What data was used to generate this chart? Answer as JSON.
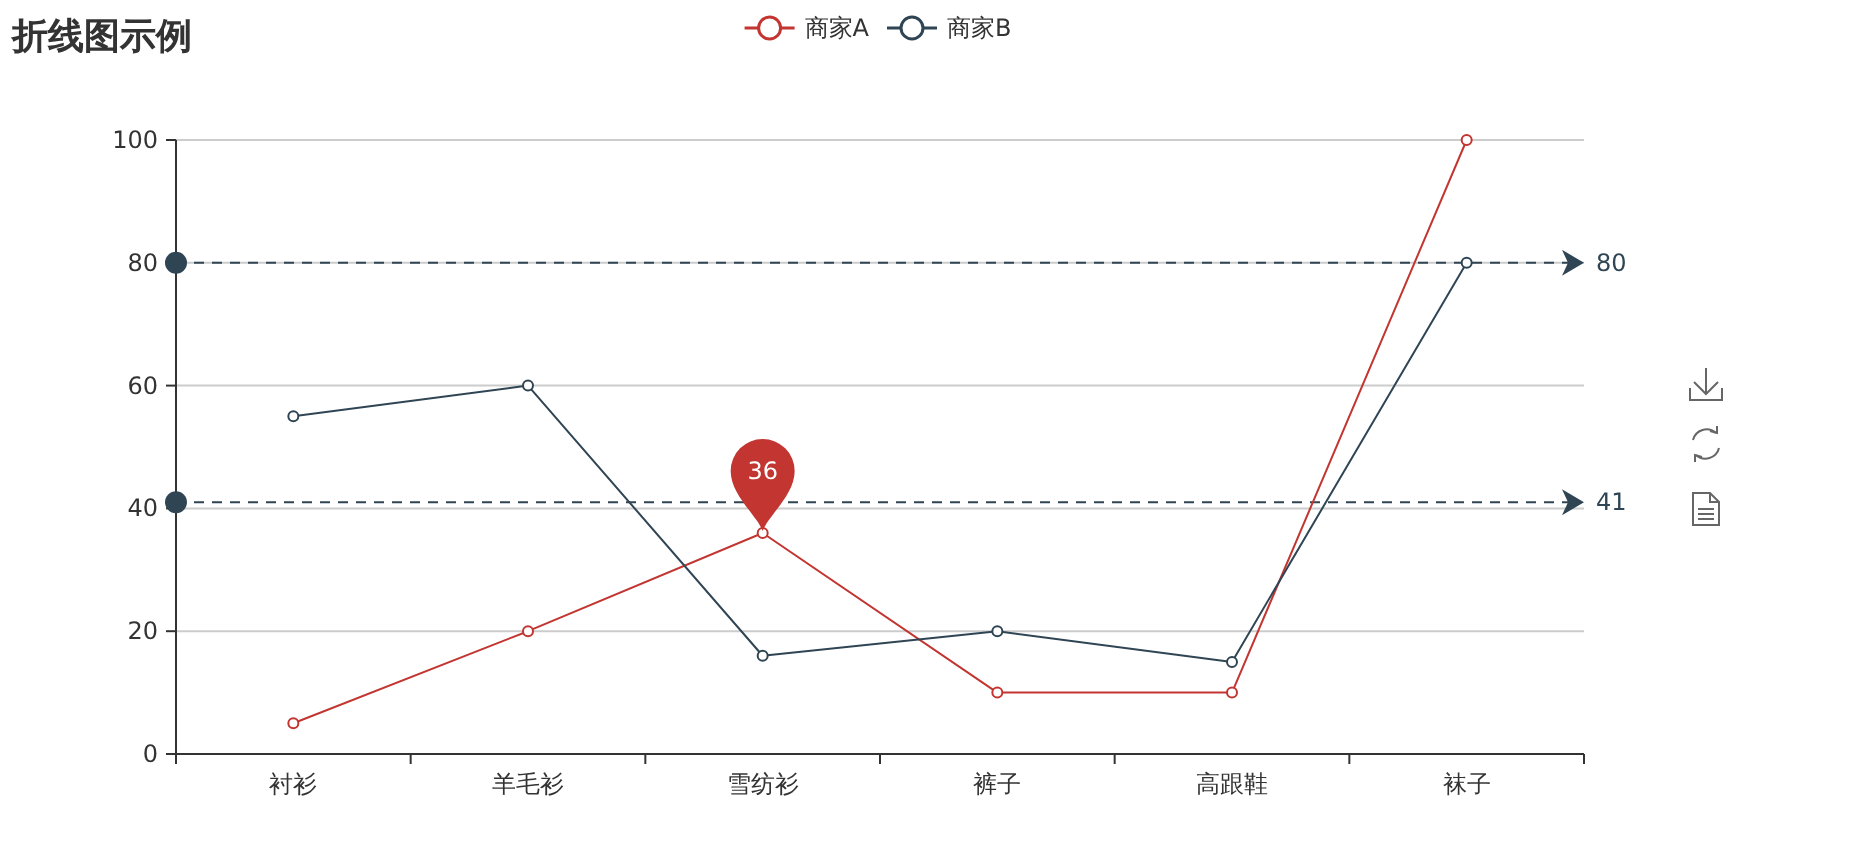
{
  "chart_data": {
    "type": "line",
    "title": "折线图示例",
    "categories": [
      "衬衫",
      "羊毛衫",
      "雪纺衫",
      "裤子",
      "高跟鞋",
      "袜子"
    ],
    "series": [
      {
        "name": "商家A",
        "color": "#c23531",
        "values": [
          5,
          20,
          36,
          10,
          10,
          100
        ]
      },
      {
        "name": "商家B",
        "color": "#2f4554",
        "values": [
          55,
          60,
          16,
          20,
          15,
          80
        ]
      }
    ],
    "ylim": [
      0,
      100
    ],
    "yticks": [
      0,
      20,
      40,
      60,
      80,
      100
    ],
    "grid": "y",
    "legend": "top",
    "marker": "circle",
    "ref_lines": [
      {
        "axis": "y",
        "value": 80,
        "label": "80",
        "color": "#2f4554",
        "line_style": "dashed"
      },
      {
        "axis": "y",
        "value": 41,
        "label": "41",
        "color": "#2f4554",
        "line_style": "dashed"
      }
    ],
    "annotations": [
      {
        "text": "36",
        "x": "雪纺衫",
        "y": 36
      }
    ]
  }
}
